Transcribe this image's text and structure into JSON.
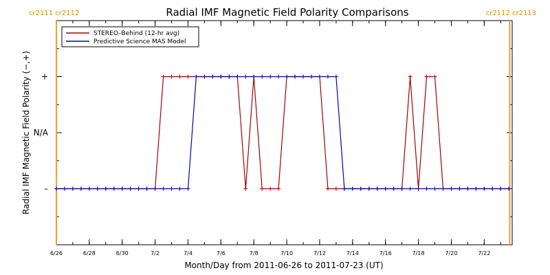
{
  "chart_data": {
    "type": "line",
    "title": "Radial IMF Magnetic Field Polarity Comparisons",
    "xlabel": "Month/Day from 2011-06-26 to 2011-07-23 (UT)",
    "ylabel": "Radial IMF Magnetic Field Polarity (−,+)",
    "x_range_days": [
      0,
      27.7
    ],
    "x_ticks": [
      {
        "day": 0,
        "label": "6/26"
      },
      {
        "day": 2,
        "label": "6/28"
      },
      {
        "day": 4,
        "label": "6/30"
      },
      {
        "day": 6,
        "label": "7/2"
      },
      {
        "day": 8,
        "label": "7/4"
      },
      {
        "day": 10,
        "label": "7/6"
      },
      {
        "day": 12,
        "label": "7/8"
      },
      {
        "day": 14,
        "label": "7/10"
      },
      {
        "day": 16,
        "label": "7/12"
      },
      {
        "day": 18,
        "label": "7/14"
      },
      {
        "day": 20,
        "label": "7/16"
      },
      {
        "day": 22,
        "label": "7/18"
      },
      {
        "day": 24,
        "label": "7/20"
      },
      {
        "day": 26,
        "label": "7/22"
      }
    ],
    "y_range": [
      -2,
      2
    ],
    "y_ticks": [
      {
        "value": 1,
        "label": "+"
      },
      {
        "value": 0,
        "label": "N/A"
      },
      {
        "value": -1,
        "label": "–"
      }
    ],
    "carrington_markers": [
      {
        "day": 0,
        "label": "cr2111 cr2112",
        "side": "left"
      },
      {
        "day": 27.55,
        "label": "cr2112 cr2113",
        "side": "right"
      }
    ],
    "legend": {
      "placement": "top-left"
    },
    "series": [
      {
        "name": "STEREO–Behind (12-hr avg)",
        "color": "#a00000",
        "marker": "plus",
        "x": [
          0,
          0.5,
          1,
          1.5,
          2,
          2.5,
          3,
          3.5,
          4,
          4.5,
          5,
          5.5,
          6,
          6.5,
          7,
          7.5,
          8,
          8.5,
          9,
          9.5,
          10,
          10.5,
          11,
          11.5,
          12,
          12.5,
          13,
          13.5,
          14,
          14.5,
          15,
          15.5,
          16,
          16.5,
          17,
          17.5,
          18,
          18.5,
          19,
          19.5,
          20,
          20.5,
          21,
          21.5,
          22,
          22.5,
          23,
          23.5,
          24,
          24.5,
          25,
          25.5,
          26,
          26.5,
          27,
          27.5
        ],
        "y": [
          -1,
          -1,
          -1,
          -1,
          -1,
          -1,
          -1,
          -1,
          -1,
          -1,
          -1,
          -1,
          -1,
          1,
          1,
          1,
          1,
          1,
          1,
          1,
          1,
          1,
          1,
          -1,
          1,
          -1,
          -1,
          -1,
          1,
          1,
          1,
          1,
          1,
          -1,
          -1,
          -1,
          -1,
          -1,
          -1,
          -1,
          -1,
          -1,
          -1,
          1,
          -1,
          1,
          1,
          -1,
          -1,
          -1,
          -1,
          -1,
          -1,
          -1,
          -1,
          -1
        ]
      },
      {
        "name": "Predictive Science MAS Model",
        "color": "#0000b0",
        "marker": "plus",
        "x": [
          0,
          0.5,
          1,
          1.5,
          2,
          2.5,
          3,
          3.5,
          4,
          4.5,
          5,
          5.5,
          6,
          6.5,
          7,
          7.5,
          8,
          8.5,
          9,
          9.5,
          10,
          10.5,
          11,
          11.5,
          12,
          12.5,
          13,
          13.5,
          14,
          14.5,
          15,
          15.5,
          16,
          16.5,
          17,
          17.5,
          18,
          18.5,
          19,
          19.5,
          20,
          20.5,
          21,
          21.5,
          22,
          22.5,
          23,
          23.5,
          24,
          24.5,
          25,
          25.5,
          26,
          26.5,
          27,
          27.5
        ],
        "y": [
          -1,
          -1,
          -1,
          -1,
          -1,
          -1,
          -1,
          -1,
          -1,
          -1,
          -1,
          -1,
          -1,
          -1,
          -1,
          -1,
          -1,
          1,
          1,
          1,
          1,
          1,
          1,
          1,
          1,
          1,
          1,
          1,
          1,
          1,
          1,
          1,
          1,
          1,
          1,
          -1,
          -1,
          -1,
          -1,
          -1,
          -1,
          -1,
          -1,
          -1,
          -1,
          -1,
          -1,
          -1,
          -1,
          -1,
          -1,
          -1,
          -1,
          -1,
          -1,
          -1
        ]
      }
    ]
  }
}
